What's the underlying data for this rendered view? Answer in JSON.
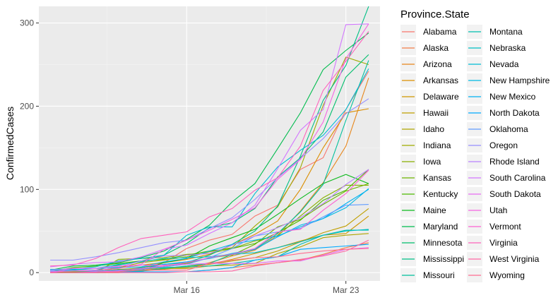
{
  "chart_data": {
    "type": "line",
    "title_fragment": "...,...p...",
    "xlabel": "",
    "ylabel": "ConfirmedCases",
    "x_ticks": [
      "Mar 16",
      "Mar 23"
    ],
    "y_ticks": [
      "0",
      "100",
      "200",
      "300"
    ],
    "x_dates": [
      "Mar 10",
      "Mar 11",
      "Mar 12",
      "Mar 13",
      "Mar 14",
      "Mar 15",
      "Mar 16",
      "Mar 17",
      "Mar 18",
      "Mar 19",
      "Mar 20",
      "Mar 21",
      "Mar 22",
      "Mar 23",
      "Mar 24"
    ],
    "xlim": [
      "Mar 9.5",
      "Mar 24.5"
    ],
    "ylim": [
      -10,
      320
    ],
    "grid": true,
    "legend_position": "right",
    "legend_title": "Province.State",
    "series": [
      {
        "name": "Alabama",
        "color": "#F8766D",
        "values": [
          0,
          0,
          0,
          3,
          6,
          12,
          29,
          39,
          46,
          68,
          81,
          124,
          138,
          196,
          242
        ]
      },
      {
        "name": "Alaska",
        "color": "#F17E47",
        "values": [
          0,
          0,
          0,
          0,
          1,
          1,
          1,
          3,
          6,
          9,
          12,
          15,
          22,
          30,
          36
        ]
      },
      {
        "name": "Arizona",
        "color": "#E7861B",
        "values": [
          1,
          1,
          1,
          2,
          3,
          5,
          6,
          12,
          20,
          27,
          45,
          74,
          108,
          152,
          234
        ]
      },
      {
        "name": "Arkansas",
        "color": "#DB8E00",
        "values": [
          0,
          0,
          0,
          6,
          9,
          12,
          16,
          22,
          33,
          46,
          62,
          100,
          150,
          192,
          197
        ]
      },
      {
        "name": "Delaware",
        "color": "#CE9700",
        "values": [
          0,
          0,
          0,
          0,
          4,
          6,
          7,
          10,
          16,
          23,
          30,
          38,
          45,
          47,
          68
        ]
      },
      {
        "name": "Hawaii",
        "color": "#BF9F00",
        "values": [
          0,
          0,
          0,
          2,
          2,
          4,
          7,
          10,
          14,
          18,
          26,
          37,
          48,
          56,
          77
        ]
      },
      {
        "name": "Idaho",
        "color": "#AFA500",
        "values": [
          0,
          0,
          0,
          1,
          2,
          5,
          5,
          8,
          9,
          11,
          23,
          31,
          42,
          45,
          47
        ]
      },
      {
        "name": "Indiana",
        "color": "#9EAB00",
        "values": [
          0,
          1,
          2,
          6,
          12,
          15,
          19,
          25,
          30,
          56,
          79,
          126,
          201,
          259,
          250
        ]
      },
      {
        "name": "Iowa",
        "color": "#88B000",
        "values": [
          0,
          0,
          0,
          16,
          17,
          18,
          22,
          23,
          29,
          38,
          44,
          68,
          90,
          105,
          105
        ]
      },
      {
        "name": "Kansas",
        "color": "#6EB400",
        "values": [
          1,
          1,
          1,
          4,
          5,
          8,
          11,
          18,
          21,
          34,
          55,
          64,
          82,
          98,
          107
        ]
      },
      {
        "name": "Kentucky",
        "color": "#4DB800",
        "values": [
          1,
          6,
          8,
          11,
          14,
          16,
          21,
          26,
          29,
          35,
          48,
          63,
          87,
          99,
          124
        ]
      },
      {
        "name": "Maine",
        "color": "#0CBA1C",
        "values": [
          0,
          0,
          0,
          1,
          3,
          12,
          17,
          32,
          42,
          52,
          70,
          89,
          107,
          118,
          107
        ]
      },
      {
        "name": "Maryland",
        "color": "#00BC4E",
        "values": [
          3,
          8,
          9,
          12,
          18,
          26,
          40,
          57,
          85,
          107,
          149,
          192,
          244,
          267,
          288
        ]
      },
      {
        "name": "Minnesota",
        "color": "#00BE6C",
        "values": [
          1,
          2,
          3,
          9,
          14,
          21,
          35,
          54,
          60,
          77,
          115,
          138,
          169,
          235,
          262
        ]
      },
      {
        "name": "Mississippi",
        "color": "#00BF85",
        "values": [
          0,
          0,
          0,
          1,
          6,
          10,
          12,
          21,
          34,
          50,
          80,
          140,
          207,
          249,
          320
        ]
      },
      {
        "name": "Missouri",
        "color": "#00C09B",
        "values": [
          0,
          0,
          1,
          1,
          2,
          5,
          8,
          11,
          22,
          28,
          47,
          73,
          106,
          183,
          255
        ]
      },
      {
        "name": "Montana",
        "color": "#00C0AF",
        "values": [
          0,
          0,
          0,
          1,
          5,
          6,
          7,
          8,
          11,
          15,
          19,
          34,
          45,
          51,
          51
        ]
      },
      {
        "name": "Nebraska",
        "color": "#00BFC2",
        "values": [
          3,
          3,
          5,
          10,
          13,
          17,
          18,
          19,
          22,
          24,
          30,
          37,
          45,
          50,
          52
        ]
      },
      {
        "name": "Nevada",
        "color": "#00BCD4",
        "values": [
          4,
          4,
          7,
          14,
          17,
          21,
          45,
          55,
          55,
          95,
          127,
          147,
          165,
          196,
          245
        ]
      },
      {
        "name": "New Hampshire",
        "color": "#00B8E4",
        "values": [
          0,
          4,
          5,
          6,
          7,
          13,
          17,
          26,
          34,
          39,
          44,
          55,
          65,
          78,
          101
        ]
      },
      {
        "name": "New Mexico",
        "color": "#00B1F2",
        "values": [
          0,
          0,
          0,
          3,
          4,
          10,
          13,
          17,
          23,
          28,
          43,
          57,
          65,
          83,
          100
        ]
      },
      {
        "name": "North Dakota",
        "color": "#00A9FF",
        "values": [
          0,
          0,
          0,
          1,
          1,
          1,
          1,
          3,
          6,
          15,
          19,
          28,
          30,
          32,
          34
        ]
      },
      {
        "name": "Oklahoma",
        "color": "#619CFF",
        "values": [
          2,
          2,
          2,
          3,
          4,
          7,
          10,
          18,
          29,
          44,
          49,
          53,
          67,
          81,
          82
        ]
      },
      {
        "name": "Oregon",
        "color": "#9590FF",
        "values": [
          15,
          15,
          19,
          24,
          30,
          36,
          39,
          53,
          66,
          88,
          114,
          137,
          161,
          191,
          209
        ]
      },
      {
        "name": "Rhode Island",
        "color": "#B983FF",
        "values": [
          3,
          5,
          5,
          7,
          14,
          20,
          21,
          23,
          33,
          44,
          54,
          66,
          83,
          106,
          124
        ]
      },
      {
        "name": "South Carolina",
        "color": "#D376FF",
        "values": [
          7,
          10,
          12,
          13,
          19,
          28,
          33,
          47,
          60,
          81,
          125,
          171,
          196,
          298,
          299
        ]
      },
      {
        "name": "South Dakota",
        "color": "#E76BF3",
        "values": [
          0,
          5,
          5,
          8,
          9,
          9,
          10,
          11,
          11,
          11,
          14,
          14,
          21,
          28,
          30
        ]
      },
      {
        "name": "Utah",
        "color": "#F564E3",
        "values": [
          1,
          2,
          3,
          5,
          10,
          28,
          39,
          51,
          64,
          78,
          112,
          136,
          181,
          257,
          299
        ]
      },
      {
        "name": "Vermont",
        "color": "#FD61D1",
        "values": [
          0,
          0,
          1,
          2,
          5,
          8,
          12,
          18,
          22,
          29,
          49,
          52,
          75,
          95,
          123
        ]
      },
      {
        "name": "Virginia",
        "color": "#FF62BC",
        "values": [
          8,
          9,
          17,
          30,
          41,
          45,
          49,
          67,
          77,
          99,
          114,
          152,
          219,
          254,
          290
        ]
      },
      {
        "name": "West Virginia",
        "color": "#FF67A4",
        "values": [
          0,
          0,
          0,
          0,
          0,
          0,
          1,
          1,
          2,
          8,
          12,
          16,
          20,
          26,
          39
        ]
      },
      {
        "name": "Wyoming",
        "color": "#FF6C91",
        "values": [
          0,
          0,
          0,
          1,
          3,
          3,
          3,
          11,
          15,
          18,
          19,
          23,
          26,
          28,
          29
        ]
      }
    ]
  }
}
